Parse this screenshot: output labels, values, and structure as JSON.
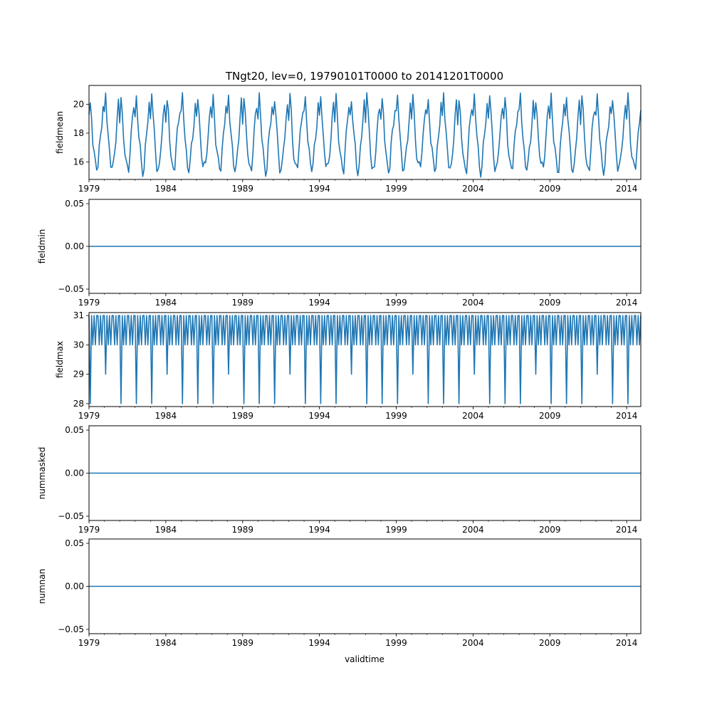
{
  "chart_data": {
    "type": "line",
    "title": "TNgt20, lev=0, 19790101T0000 to 20141201T0000",
    "xlabel": "validtime",
    "x_start": "1979-01",
    "x_end": "2014-12",
    "x_step": "month",
    "xlim": [
      1979.0,
      2014.92
    ],
    "xticks": [
      1979,
      1984,
      1989,
      1994,
      1999,
      2004,
      2009,
      2014
    ],
    "xtick_labels": [
      "1979",
      "1984",
      "1989",
      "1994",
      "1999",
      "2004",
      "2009",
      "2014"
    ],
    "minor_ticks": "yearly",
    "line_color": "#1f77b4",
    "grid": false,
    "panels": [
      {
        "ylabel": "fieldmean",
        "ylim": [
          14.8,
          21.3
        ],
        "yticks": [
          16,
          18,
          20
        ],
        "ytick_labels": [
          "16",
          "18",
          "20"
        ],
        "seasonal_cycle_by_month": [
          19.1,
          20.1,
          19.2,
          17.7,
          16.7,
          15.8,
          15.5,
          15.7,
          16.9,
          17.9,
          18.9,
          19.9
        ],
        "values_approx": "monthly seasonal cycle, min ~15.1-16.1, max ~19.6-20.9"
      },
      {
        "ylabel": "fieldmin",
        "ylim": [
          -0.055,
          0.055
        ],
        "yticks": [
          -0.05,
          0.0,
          0.05
        ],
        "ytick_labels": [
          "−0.05",
          "0.00",
          "0.05"
        ],
        "constant_value": 0
      },
      {
        "ylabel": "fieldmax",
        "ylim": [
          27.9,
          31.1
        ],
        "yticks": [
          28,
          29,
          30,
          31
        ],
        "ytick_labels": [
          "28",
          "29",
          "30",
          "31"
        ],
        "baseline_pattern": [
          31,
          30,
          31,
          30,
          31,
          30,
          31,
          31,
          30,
          31,
          30,
          31
        ],
        "feb_values": [
          28,
          29,
          28,
          28,
          28,
          29,
          28,
          28,
          28,
          29,
          28,
          28,
          28,
          29,
          28,
          28,
          28,
          29,
          28,
          28,
          28,
          29,
          28,
          28,
          28,
          29,
          28,
          28,
          28,
          29,
          28,
          28,
          28,
          29,
          28,
          28
        ]
      },
      {
        "ylabel": "nummasked",
        "ylim": [
          -0.055,
          0.055
        ],
        "yticks": [
          -0.05,
          0.0,
          0.05
        ],
        "ytick_labels": [
          "−0.05",
          "0.00",
          "0.05"
        ],
        "constant_value": 0
      },
      {
        "ylabel": "numnan",
        "ylim": [
          -0.055,
          0.055
        ],
        "yticks": [
          -0.05,
          0.0,
          0.05
        ],
        "ytick_labels": [
          "−0.05",
          "0.00",
          "0.05"
        ],
        "constant_value": 0
      }
    ]
  }
}
